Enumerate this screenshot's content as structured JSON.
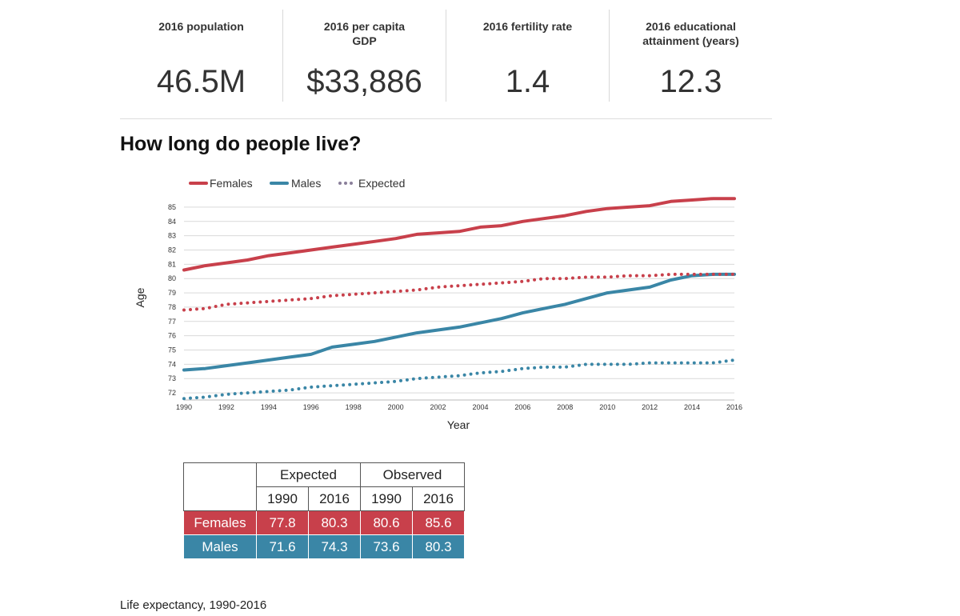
{
  "stats": [
    {
      "label": "2016 population",
      "value": "46.5M"
    },
    {
      "label": "2016 per capita GDP",
      "value": "$33,886"
    },
    {
      "label": "2016 fertility rate",
      "value": "1.4"
    },
    {
      "label": "2016 educational attainment (years)",
      "value": "12.3"
    }
  ],
  "heading": "How long do people live?",
  "colors": {
    "female": "#c8404b",
    "male": "#3a86a6",
    "grid": "#d9d9d9"
  },
  "chart_data": {
    "type": "line",
    "title": "How long do people live?",
    "xlabel": "Year",
    "ylabel": "Age",
    "xlim": [
      1990,
      2016
    ],
    "ylim": [
      71.5,
      85.5
    ],
    "yticks": [
      72,
      73,
      74,
      75,
      76,
      77,
      78,
      79,
      80,
      81,
      82,
      83,
      84,
      85
    ],
    "xticks": [
      1990,
      1992,
      1994,
      1996,
      1998,
      2000,
      2002,
      2004,
      2006,
      2008,
      2010,
      2012,
      2014,
      2016
    ],
    "legend": [
      "Females",
      "Males",
      "Expected"
    ],
    "x": [
      1990,
      1991,
      1992,
      1993,
      1994,
      1995,
      1996,
      1997,
      1998,
      1999,
      2000,
      2001,
      2002,
      2003,
      2004,
      2005,
      2006,
      2007,
      2008,
      2009,
      2010,
      2011,
      2012,
      2013,
      2014,
      2015,
      2016
    ],
    "series": [
      {
        "name": "Females",
        "style": "solid",
        "color": "#c8404b",
        "values": [
          80.6,
          80.9,
          81.1,
          81.3,
          81.6,
          81.8,
          82.0,
          82.2,
          82.4,
          82.6,
          82.8,
          83.1,
          83.2,
          83.3,
          83.6,
          83.7,
          84.0,
          84.2,
          84.4,
          84.7,
          84.9,
          85.0,
          85.1,
          85.4,
          85.5,
          85.6,
          85.6
        ]
      },
      {
        "name": "Males",
        "style": "solid",
        "color": "#3a86a6",
        "values": [
          73.6,
          73.7,
          73.9,
          74.1,
          74.3,
          74.5,
          74.7,
          75.2,
          75.4,
          75.6,
          75.9,
          76.2,
          76.4,
          76.6,
          76.9,
          77.2,
          77.6,
          77.9,
          78.2,
          78.6,
          79.0,
          79.2,
          79.4,
          79.9,
          80.2,
          80.3,
          80.3
        ]
      },
      {
        "name": "Expected (Females)",
        "style": "dotted",
        "color": "#c8404b",
        "values": [
          77.8,
          77.9,
          78.2,
          78.3,
          78.4,
          78.5,
          78.6,
          78.8,
          78.9,
          79.0,
          79.1,
          79.2,
          79.4,
          79.5,
          79.6,
          79.7,
          79.8,
          80.0,
          80.0,
          80.1,
          80.1,
          80.2,
          80.2,
          80.3,
          80.3,
          80.3,
          80.3
        ]
      },
      {
        "name": "Expected (Males)",
        "style": "dotted",
        "color": "#3a86a6",
        "values": [
          71.6,
          71.7,
          71.9,
          72.0,
          72.1,
          72.2,
          72.4,
          72.5,
          72.6,
          72.7,
          72.8,
          73.0,
          73.1,
          73.2,
          73.4,
          73.5,
          73.7,
          73.8,
          73.8,
          74.0,
          74.0,
          74.0,
          74.1,
          74.1,
          74.1,
          74.1,
          74.3
        ]
      }
    ]
  },
  "table": {
    "group_headers": [
      "Expected",
      "Observed"
    ],
    "years": [
      "1990",
      "2016",
      "1990",
      "2016"
    ],
    "rows": [
      {
        "label": "Females",
        "values": [
          "77.8",
          "80.3",
          "80.6",
          "85.6"
        ]
      },
      {
        "label": "Males",
        "values": [
          "71.6",
          "74.3",
          "73.6",
          "80.3"
        ]
      }
    ]
  },
  "caption": "Life expectancy, 1990-2016"
}
